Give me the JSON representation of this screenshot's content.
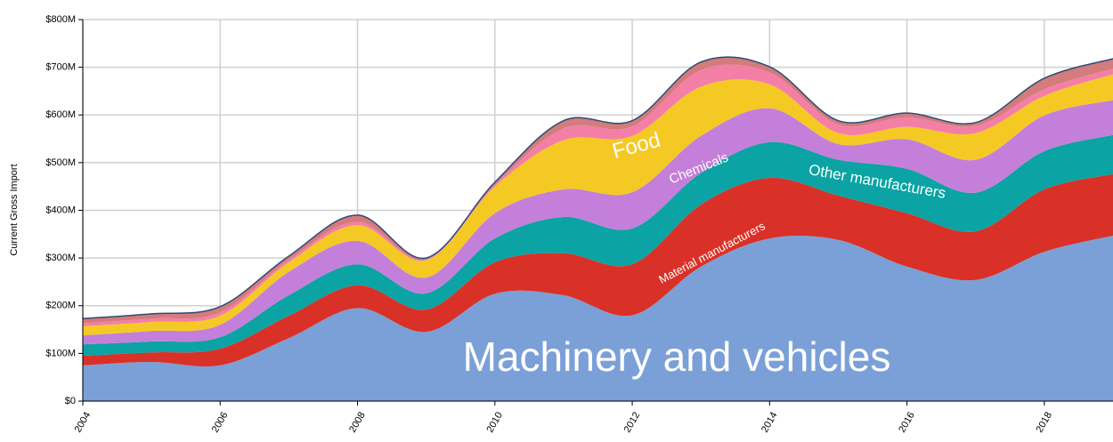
{
  "chart_data": {
    "type": "stacked_area",
    "y_label": "Current Gross Import",
    "x": [
      2004,
      2005,
      2006,
      2007,
      2008,
      2009,
      2010,
      2011,
      2012,
      2013,
      2014,
      2015,
      2016,
      2017,
      2018,
      2019
    ],
    "xlim": [
      2004,
      2019
    ],
    "xticks": [
      2004,
      2006,
      2008,
      2010,
      2012,
      2014,
      2016,
      2018
    ],
    "ylim": [
      0,
      800
    ],
    "yticks": [
      {
        "value": 0,
        "label": "$0"
      },
      {
        "value": 100,
        "label": "$100M"
      },
      {
        "value": 200,
        "label": "$200M"
      },
      {
        "value": 300,
        "label": "$300M"
      },
      {
        "value": 400,
        "label": "$400M"
      },
      {
        "value": 500,
        "label": "$500M"
      },
      {
        "value": 600,
        "label": "$600M"
      },
      {
        "value": 700,
        "label": "$700M"
      },
      {
        "value": 800,
        "label": "$800M"
      }
    ],
    "grid": true,
    "series": [
      {
        "name": "Machinery and vehicles",
        "color": "#7ba0d7",
        "values": [
          75,
          82,
          75,
          132,
          195,
          145,
          225,
          222,
          180,
          282,
          341,
          338,
          282,
          254,
          313,
          347
        ]
      },
      {
        "name": "Material manufacturers",
        "color": "#d93127",
        "values": [
          20,
          20,
          35,
          47,
          48,
          47,
          66,
          88,
          107,
          130,
          127,
          93,
          112,
          102,
          131,
          129
        ]
      },
      {
        "name": "Other manufacturers",
        "color": "#0ba3a3",
        "values": [
          24,
          23,
          24,
          43,
          44,
          34,
          50,
          76,
          75,
          66,
          75,
          75,
          93,
          81,
          80,
          82
        ]
      },
      {
        "name": "Chemicals",
        "color": "#c47fda",
        "values": [
          19,
          22,
          26,
          49,
          49,
          33,
          53,
          58,
          76,
          78,
          71,
          33,
          62,
          69,
          75,
          73
        ]
      },
      {
        "name": "Food",
        "color": "#f5c924",
        "values": [
          19,
          19,
          19,
          20,
          33,
          36,
          56,
          103,
          118,
          103,
          50,
          23,
          26,
          56,
          41,
          54
        ]
      },
      {
        "color": "#f47fa6",
        "values": [
          6,
          7,
          7,
          5,
          7,
          2,
          3,
          25,
          20,
          35,
          25,
          18,
          20,
          15,
          14,
          12
        ]
      },
      {
        "color": "#d47b7b",
        "values": [
          10,
          10,
          12,
          8,
          14,
          3,
          6,
          16,
          12,
          17,
          12,
          8,
          9,
          7,
          23,
          21
        ]
      }
    ]
  }
}
